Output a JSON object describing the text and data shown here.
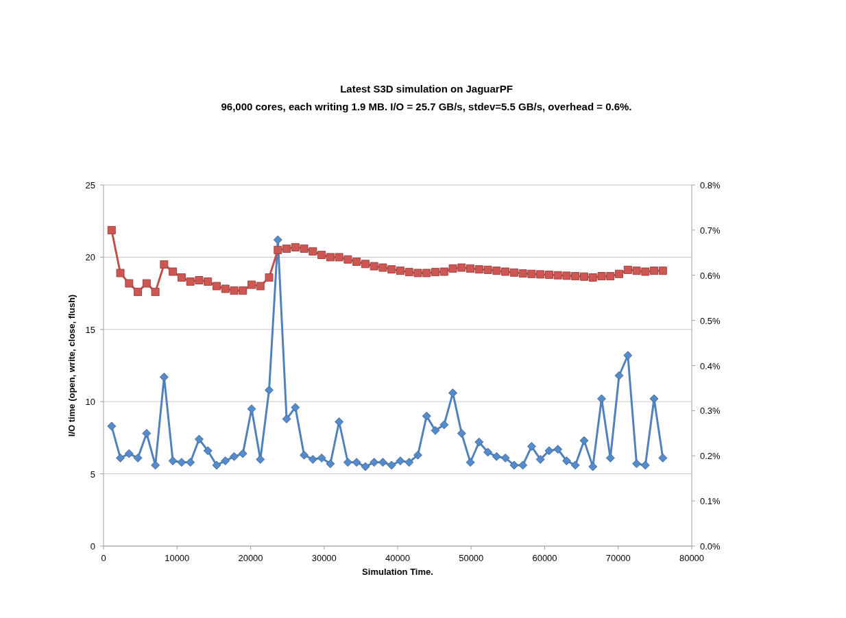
{
  "chart_data": {
    "type": "line",
    "title": "Latest S3D simulation on JaguarPF",
    "subtitle": "96,000 cores, each writing 1.9 MB. I/O = 25.7 GB/s, stdev=5.5 GB/s, overhead = 0.6%.",
    "xlabel": "Simulation Time.",
    "ylabel": "I/O time (open, write, close, flush)",
    "x": [
      1100,
      2290,
      3480,
      4670,
      5860,
      7050,
      8240,
      9430,
      10620,
      11810,
      13000,
      14190,
      15380,
      16570,
      17760,
      18950,
      20140,
      21330,
      22520,
      23710,
      24900,
      26090,
      27280,
      28470,
      29660,
      30850,
      32040,
      33230,
      34420,
      35610,
      36800,
      37990,
      39180,
      40370,
      41560,
      42750,
      43940,
      45130,
      46320,
      47510,
      48700,
      49890,
      51080,
      52270,
      53460,
      54650,
      55840,
      57030,
      58220,
      59410,
      60600,
      61790,
      62980,
      64170,
      65360,
      66550,
      67740,
      68930,
      70120,
      71310,
      72500,
      73690,
      74880,
      76070
    ],
    "series": [
      {
        "color": "#4f81bd",
        "marker": "diamond",
        "values": [
          8.3,
          6.1,
          6.4,
          6.1,
          7.8,
          5.6,
          11.7,
          5.9,
          5.8,
          5.8,
          7.4,
          6.6,
          5.6,
          5.9,
          6.2,
          6.4,
          9.5,
          6.0,
          10.8,
          21.2,
          8.8,
          9.6,
          6.3,
          6.0,
          6.1,
          5.7,
          8.6,
          5.8,
          5.8,
          5.5,
          5.8,
          5.8,
          5.6,
          5.9,
          5.8,
          6.3,
          9.0,
          8.0,
          8.4,
          10.6,
          7.8,
          5.8,
          7.2,
          6.5,
          6.2,
          6.1,
          5.6,
          5.6,
          6.9,
          6.0,
          6.6,
          6.7,
          5.9,
          5.6,
          7.3,
          5.5,
          10.2,
          6.1,
          11.8,
          13.2,
          5.7,
          5.6,
          10.2,
          6.1
        ]
      },
      {
        "color": "#c0504d",
        "marker": "square",
        "axis": "y2",
        "values": [
          0.7,
          0.605,
          0.582,
          0.563,
          0.582,
          0.563,
          0.624,
          0.608,
          0.595,
          0.586,
          0.589,
          0.586,
          0.576,
          0.57,
          0.566,
          0.566,
          0.579,
          0.576,
          0.595,
          0.656,
          0.659,
          0.662,
          0.659,
          0.653,
          0.645,
          0.64,
          0.64,
          0.635,
          0.63,
          0.625,
          0.62,
          0.617,
          0.613,
          0.61,
          0.607,
          0.605,
          0.605,
          0.607,
          0.608,
          0.615,
          0.617,
          0.615,
          0.613,
          0.612,
          0.61,
          0.608,
          0.606,
          0.604,
          0.603,
          0.602,
          0.601,
          0.6,
          0.599,
          0.598,
          0.597,
          0.595,
          0.598,
          0.598,
          0.603,
          0.612,
          0.61,
          0.608,
          0.61,
          0.61
        ]
      }
    ],
    "xlim": [
      0,
      80000
    ],
    "xticks": [
      0,
      10000,
      20000,
      30000,
      40000,
      50000,
      60000,
      70000,
      80000
    ],
    "ylim": [
      0,
      25
    ],
    "yticks": [
      0,
      5,
      10,
      15,
      20,
      25
    ],
    "y2lim": [
      0,
      0.8
    ],
    "y2ticks": [
      {
        "value": 0,
        "label": "0.0%"
      },
      {
        "value": 0.1,
        "label": "0.1%"
      },
      {
        "value": 0.2,
        "label": "0.2%"
      },
      {
        "value": 0.3,
        "label": "0.3%"
      },
      {
        "value": 0.4,
        "label": "0.4%"
      },
      {
        "value": 0.5,
        "label": "0.5%"
      },
      {
        "value": 0.6,
        "label": "0.6%"
      },
      {
        "value": 0.7,
        "label": "0.7%"
      },
      {
        "value": 0.8,
        "label": "0.8%"
      }
    ],
    "grid": "y",
    "line_style": "solid"
  }
}
